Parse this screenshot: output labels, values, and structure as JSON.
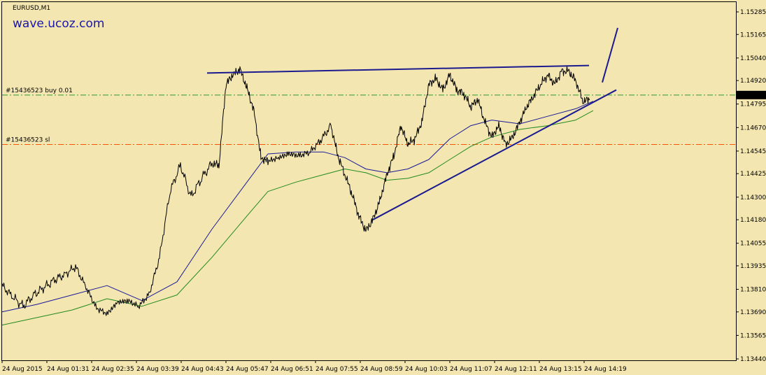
{
  "chart_data": {
    "type": "line",
    "symbol_timeframe": "EURUSD,M1",
    "watermark": "wave.ucoz.com",
    "ylim": [
      1.1344,
      1.1531
    ],
    "y_ticks": [
      "1.15285",
      "1.15165",
      "1.15040",
      "1.14920",
      "1.14795",
      "1.14670",
      "1.14545",
      "1.14425",
      "1.14300",
      "1.14180",
      "1.14055",
      "1.13935",
      "1.13810",
      "1.13690",
      "1.13565",
      "1.13440"
    ],
    "x_ticks": [
      "24 Aug 2015",
      "24 Aug 01:31",
      "24 Aug 02:35",
      "24 Aug 03:39",
      "24 Aug 04:43",
      "24 Aug 05:47",
      "24 Aug 06:51",
      "24 Aug 07:55",
      "24 Aug 08:59",
      "24 Aug 10:03",
      "24 Aug 11:07",
      "24 Aug 12:11",
      "24 Aug 13:15",
      "24 Aug 14:19"
    ],
    "current_price": "1.14843",
    "price_x": [
      0,
      15,
      30,
      45,
      60,
      75,
      90,
      105,
      120,
      135,
      150,
      165,
      180,
      195,
      210,
      225,
      240,
      255,
      270,
      285,
      300,
      310,
      320,
      330,
      340,
      350,
      360,
      370,
      380,
      395,
      410,
      425,
      440,
      455,
      470,
      480,
      490,
      500,
      510,
      520,
      530,
      540,
      550,
      560,
      570,
      580,
      590,
      600,
      610,
      620,
      630,
      640,
      650,
      660,
      670,
      680,
      690,
      700,
      710,
      720,
      730,
      740,
      750,
      760,
      770,
      780,
      790,
      800,
      810,
      820,
      830,
      840
    ],
    "price": [
      1.1383,
      1.1377,
      1.1372,
      1.1378,
      1.1382,
      1.1386,
      1.1389,
      1.1393,
      1.1382,
      1.1371,
      1.1368,
      1.1374,
      1.1375,
      1.1372,
      1.1378,
      1.1398,
      1.1433,
      1.1447,
      1.143,
      1.144,
      1.1448,
      1.1447,
      1.149,
      1.1495,
      1.1498,
      1.1488,
      1.1476,
      1.1451,
      1.1449,
      1.1451,
      1.1453,
      1.1452,
      1.1454,
      1.146,
      1.1468,
      1.1452,
      1.1442,
      1.1432,
      1.142,
      1.1412,
      1.1418,
      1.1428,
      1.1442,
      1.1452,
      1.1468,
      1.1458,
      1.1461,
      1.147,
      1.149,
      1.1493,
      1.1487,
      1.1495,
      1.1487,
      1.1485,
      1.1478,
      1.1482,
      1.147,
      1.1462,
      1.1468,
      1.1458,
      1.1462,
      1.147,
      1.1478,
      1.1484,
      1.149,
      1.1495,
      1.149,
      1.1497,
      1.1497,
      1.1492,
      1.1481,
      1.1482
    ],
    "ma_fast_x": [
      0,
      50,
      100,
      150,
      200,
      250,
      300,
      350,
      380,
      420,
      460,
      490,
      520,
      550,
      580,
      610,
      640,
      670,
      700,
      740,
      780,
      820,
      845
    ],
    "ma_fast": [
      1.1369,
      1.1373,
      1.1378,
      1.1383,
      1.1375,
      1.1385,
      1.1413,
      1.1438,
      1.1453,
      1.1454,
      1.1454,
      1.1451,
      1.1445,
      1.1443,
      1.1445,
      1.145,
      1.1461,
      1.1468,
      1.1471,
      1.1469,
      1.1473,
      1.1477,
      1.1481
    ],
    "ma_slow_x": [
      0,
      50,
      100,
      150,
      200,
      250,
      300,
      350,
      380,
      420,
      460,
      490,
      520,
      550,
      580,
      610,
      640,
      670,
      700,
      740,
      780,
      820,
      845
    ],
    "ma_slow": [
      1.1362,
      1.1366,
      1.137,
      1.1376,
      1.1372,
      1.1378,
      1.1398,
      1.142,
      1.1433,
      1.1438,
      1.1442,
      1.1445,
      1.1443,
      1.1439,
      1.144,
      1.1443,
      1.145,
      1.1457,
      1.1462,
      1.1466,
      1.1468,
      1.1471,
      1.1476
    ],
    "order_lines": [
      {
        "label": "#15436523 buy 0.01",
        "price": 1.14843,
        "color": "#2e9b2e"
      },
      {
        "label": "#15436523 sl",
        "price": 1.1458,
        "color": "#ff5500"
      }
    ],
    "trendlines": [
      {
        "x1": 296,
        "y1": 1.1496,
        "x2": 842,
        "y2": 1.15
      },
      {
        "x1": 533,
        "y1": 1.1418,
        "x2": 881,
        "y2": 1.1487
      },
      {
        "x1": 861,
        "y1": 1.1491,
        "x2": 883,
        "y2": 1.152
      }
    ],
    "colors": {
      "background": "#f3e6b1",
      "price": "#000000",
      "ma_fast": "#1a1a99",
      "ma_slow": "#238b1e",
      "trendline": "#1b1b8f"
    }
  }
}
